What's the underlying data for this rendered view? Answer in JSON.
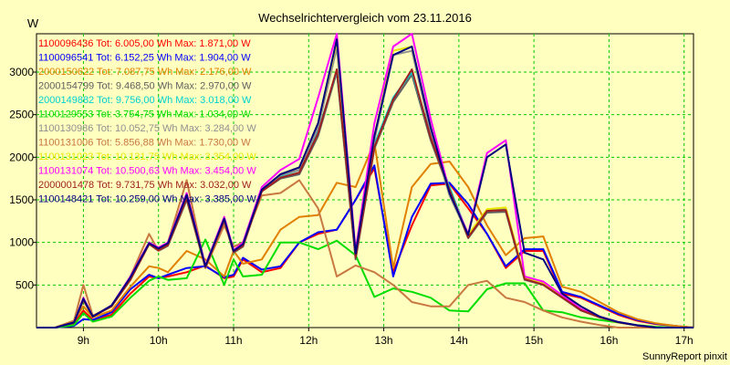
{
  "chart_data": {
    "type": "line",
    "title": "Wechselrichtervergleich vom 23.11.2016",
    "ylabel": "W",
    "footer": "SunnyReport pinxit",
    "x_ticks": [
      "9h",
      "10h",
      "11h",
      "12h",
      "13h",
      "14h",
      "15h",
      "16h",
      "17h"
    ],
    "x_tick_hours": [
      9,
      10,
      11,
      12,
      13,
      14,
      15,
      16,
      17
    ],
    "y_ticks": [
      "500",
      "1000",
      "1500",
      "2000",
      "2500",
      "3000"
    ],
    "y_tick_values": [
      500,
      1000,
      1500,
      2000,
      2500,
      3000
    ],
    "xlim": [
      8.375,
      17.125
    ],
    "ylim": [
      0,
      3450
    ],
    "grid": true,
    "legend_position": "top-left",
    "x": [
      8.375,
      8.625,
      8.875,
      9.0,
      9.125,
      9.375,
      9.625,
      9.875,
      10.0,
      10.125,
      10.375,
      10.625,
      10.875,
      11.0,
      11.125,
      11.375,
      11.625,
      11.875,
      12.125,
      12.375,
      12.625,
      12.875,
      13.125,
      13.375,
      13.625,
      13.875,
      14.125,
      14.375,
      14.625,
      14.875,
      15.125,
      15.375,
      15.625,
      15.875,
      16.125,
      16.375,
      16.625,
      16.875,
      17.125
    ],
    "series": [
      {
        "name": "1100096436",
        "label": "1100096436 Tot: 6.005,00 Wh Max: 1.871,00 W",
        "color": "#ff0000",
        "values": [
          0,
          0,
          50,
          200,
          90,
          150,
          400,
          600,
          580,
          600,
          650,
          730,
          580,
          600,
          800,
          650,
          700,
          1000,
          1100,
          1150,
          1500,
          1871,
          650,
          1200,
          1670,
          1690,
          1400,
          1100,
          700,
          900,
          900,
          400,
          350,
          250,
          150,
          80,
          40,
          20,
          0
        ]
      },
      {
        "name": "1100096541",
        "label": "1100096541 Tot: 6.152,25 Wh Max: 1.904,00 W",
        "color": "#0000ff",
        "values": [
          0,
          0,
          20,
          100,
          90,
          180,
          450,
          620,
          580,
          620,
          700,
          720,
          590,
          620,
          820,
          680,
          720,
          1000,
          1120,
          1150,
          1500,
          1904,
          600,
          1300,
          1690,
          1700,
          1450,
          1100,
          720,
          920,
          920,
          420,
          360,
          260,
          160,
          90,
          45,
          20,
          0
        ]
      },
      {
        "name": "2000150622",
        "label": "2000150622 Tot: 7.087,75 Wh Max: 2.176,00 W",
        "color": "#e08000",
        "values": [
          0,
          0,
          80,
          250,
          120,
          200,
          480,
          720,
          700,
          650,
          900,
          800,
          600,
          900,
          750,
          800,
          1150,
          1300,
          1320,
          1700,
          1650,
          2176,
          700,
          1650,
          1920,
          1950,
          1650,
          1200,
          850,
          1050,
          1070,
          480,
          420,
          300,
          180,
          100,
          50,
          20,
          0
        ]
      },
      {
        "name": "2000154799",
        "label": "2000154799 Tot: 9.468,50 Wh Max: 2.970,00 W",
        "color": "#606060",
        "values": [
          0,
          0,
          60,
          330,
          130,
          250,
          560,
          980,
          900,
          960,
          1500,
          700,
          1250,
          880,
          950,
          1600,
          1750,
          1800,
          2250,
          3000,
          800,
          2100,
          2650,
          2970,
          2200,
          1600,
          1050,
          1350,
          1360,
          560,
          500,
          350,
          200,
          120,
          60,
          25,
          0,
          0,
          0
        ]
      },
      {
        "name": "2000149882",
        "label": "2000149882 Tot: 9.756,00 Wh Max: 3.018,00 W",
        "color": "#00d0d0",
        "values": [
          0,
          0,
          60,
          320,
          130,
          250,
          580,
          1000,
          920,
          980,
          1550,
          720,
          1280,
          900,
          970,
          1620,
          1780,
          1850,
          2300,
          3018,
          820,
          2150,
          2700,
          3000,
          2250,
          1650,
          1080,
          1380,
          1400,
          580,
          510,
          360,
          210,
          125,
          62,
          26,
          0,
          0,
          0
        ]
      },
      {
        "name": "1100129553",
        "label": "1100129553 Tot: 3.754,75 Wh Max: 1.034,00 W",
        "color": "#00dd00",
        "values": [
          0,
          0,
          30,
          170,
          70,
          130,
          350,
          550,
          600,
          560,
          580,
          1034,
          500,
          800,
          600,
          620,
          1000,
          1000,
          920,
          1020,
          850,
          360,
          460,
          420,
          350,
          200,
          190,
          450,
          520,
          520,
          200,
          180,
          120,
          90,
          60,
          30,
          10,
          0,
          0
        ]
      },
      {
        "name": "1100130986",
        "label": "1100130986 Tot: 10.052,75 Wh Max: 3.284,00 W",
        "color": "#909090",
        "values": [
          0,
          0,
          60,
          340,
          130,
          260,
          590,
          990,
          930,
          990,
          1560,
          720,
          1280,
          900,
          980,
          1620,
          1790,
          1850,
          2350,
          3284,
          850,
          2200,
          3200,
          3250,
          2300,
          1550,
          1080,
          1380,
          1400,
          580,
          520,
          360,
          210,
          125,
          62,
          26,
          0,
          0,
          0
        ]
      },
      {
        "name": "1100131006",
        "label": "1100131006 Tot: 5.856,88 Wh Max: 1.730,00 W",
        "color": "#c87840",
        "values": [
          0,
          0,
          80,
          500,
          140,
          250,
          600,
          1100,
          900,
          1000,
          1730,
          700,
          1200,
          950,
          1000,
          1550,
          1580,
          1730,
          1400,
          600,
          730,
          650,
          500,
          300,
          250,
          250,
          500,
          550,
          350,
          300,
          200,
          120,
          70,
          30,
          0,
          0,
          0,
          0,
          0
        ]
      },
      {
        "name": "1100131023",
        "label": "1100131023 Tot: 10.131,75 Wh Max: 3.354,00 W",
        "color": "#e8e800",
        "values": [
          0,
          0,
          60,
          340,
          130,
          260,
          590,
          990,
          930,
          990,
          1560,
          720,
          1280,
          900,
          980,
          1620,
          1800,
          1880,
          2400,
          3354,
          860,
          2250,
          3250,
          3300,
          2350,
          1580,
          1090,
          1390,
          1410,
          590,
          525,
          365,
          212,
          126,
          63,
          26,
          0,
          0,
          0
        ]
      },
      {
        "name": "1100131074",
        "label": "1100131074 Tot: 10.500,63 Wh Max: 3.454,00 W",
        "color": "#ff00ff",
        "values": [
          0,
          0,
          60,
          350,
          130,
          260,
          600,
          1000,
          940,
          1000,
          1580,
          730,
          1300,
          910,
          1000,
          1650,
          1850,
          1980,
          2700,
          3454,
          900,
          2400,
          3300,
          3454,
          2450,
          1600,
          1100,
          2050,
          2200,
          600,
          540,
          380,
          220,
          130,
          65,
          27,
          0,
          0,
          0
        ]
      },
      {
        "name": "2000001478",
        "label": "2000001478 Tot: 9.731,75 Wh Max: 3.032,00 W",
        "color": "#a02020",
        "values": [
          0,
          0,
          60,
          320,
          130,
          250,
          560,
          980,
          910,
          970,
          1520,
          710,
          1260,
          890,
          960,
          1600,
          1760,
          1820,
          2280,
          3032,
          820,
          2120,
          2680,
          3032,
          2230,
          1620,
          1060,
          1370,
          1380,
          570,
          505,
          355,
          205,
          122,
          61,
          25,
          0,
          0,
          0
        ]
      },
      {
        "name": "1100148421",
        "label": "1100148421 Tot: 10.259,00 Wh Max: 3.385,00 W",
        "color": "#000080",
        "values": [
          0,
          0,
          60,
          340,
          130,
          260,
          590,
          990,
          930,
          990,
          1560,
          720,
          1280,
          900,
          980,
          1620,
          1800,
          1880,
          2400,
          3385,
          870,
          2250,
          3200,
          3300,
          2350,
          1580,
          1090,
          2000,
          2150,
          880,
          800,
          400,
          250,
          130,
          65,
          27,
          0,
          0,
          0
        ]
      }
    ]
  }
}
